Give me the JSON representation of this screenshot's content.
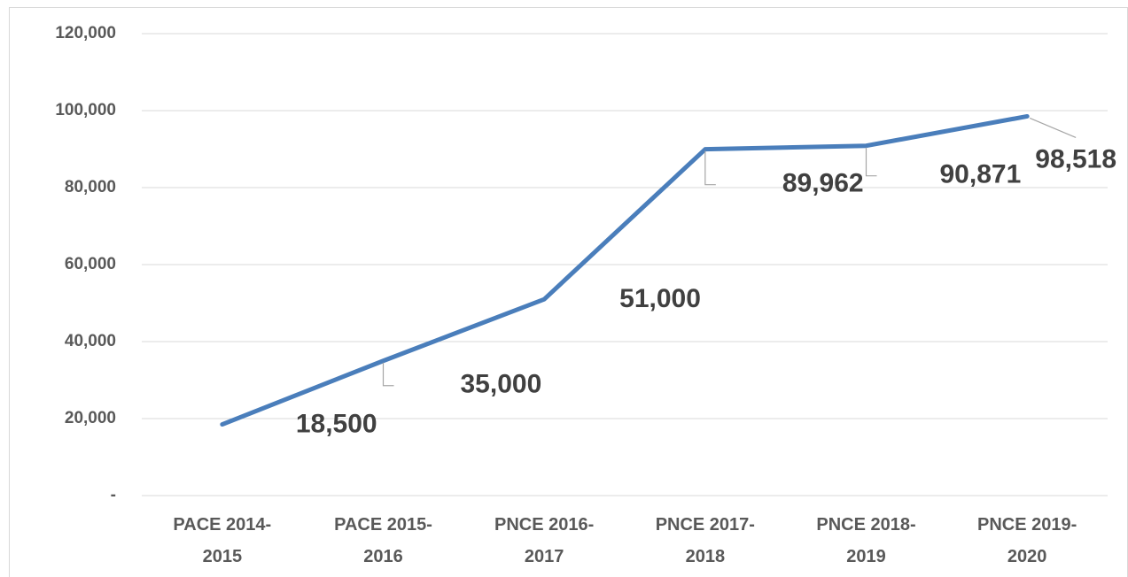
{
  "chart_data": {
    "type": "line",
    "categories": [
      "PACE 2014-2015",
      "PACE 2015-2016",
      "PNCE 2016-2017",
      "PNCE 2017-2018",
      "PNCE 2018-2019",
      "PNCE 2019-2020"
    ],
    "series": [
      {
        "color": "#4a7ebb",
        "values": [
          18500,
          35000,
          51000,
          89962,
          90871,
          98518
        ],
        "value_labels": [
          "18,500",
          "35,000",
          "51,000",
          "89,962",
          "90,871",
          "98,518"
        ]
      }
    ],
    "ylim": [
      0,
      120000
    ],
    "yticks": [
      {
        "value": 0,
        "label": "-"
      },
      {
        "value": 20000,
        "label": "20,000"
      },
      {
        "value": 40000,
        "label": "40,000"
      },
      {
        "value": 60000,
        "label": "60,000"
      },
      {
        "value": 80000,
        "label": "80,000"
      },
      {
        "value": 100000,
        "label": "100,000"
      },
      {
        "value": 120000,
        "label": "120,000"
      }
    ],
    "grid": true
  }
}
